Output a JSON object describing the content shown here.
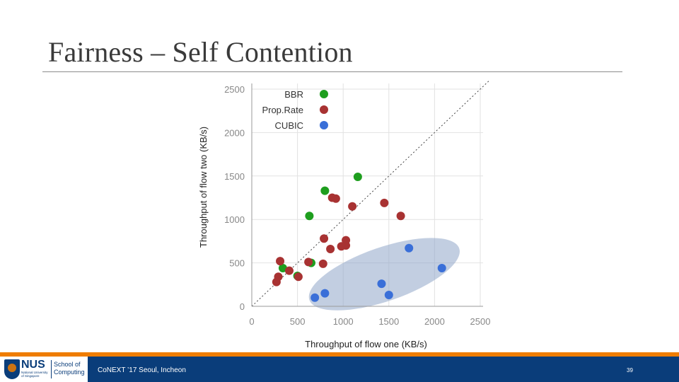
{
  "slide": {
    "title": "Fairness – Self Contention",
    "footer_text": "CoNEXT ’17 Seoul, Incheon",
    "page_number": "39",
    "logo": {
      "name": "NUS",
      "subtitle": "National University of Singapore",
      "school": "School of Computing"
    }
  },
  "chart_data": {
    "type": "scatter",
    "xlabel": "Throughput of flow one (KB/s)",
    "ylabel": "Throughput of flow two (KB/s)",
    "xlim": [
      0,
      2500
    ],
    "ylim": [
      0,
      2500
    ],
    "xticks": [
      0,
      500,
      1000,
      1500,
      2000,
      2500
    ],
    "yticks": [
      0,
      500,
      1000,
      1500,
      2000,
      2500
    ],
    "grid": true,
    "diagonal_reference_line": true,
    "legend_position": "top-left",
    "highlight_region": "ellipse around CUBIC points",
    "series": [
      {
        "name": "BBR",
        "color": "#1e9e1e",
        "points": [
          [
            1160,
            1490
          ],
          [
            800,
            1330
          ],
          [
            630,
            1040
          ],
          [
            340,
            440
          ],
          [
            650,
            500
          ],
          [
            500,
            350
          ]
        ]
      },
      {
        "name": "Prop.Rate",
        "color": "#a83232",
        "points": [
          [
            880,
            1250
          ],
          [
            920,
            1240
          ],
          [
            1100,
            1150
          ],
          [
            1450,
            1190
          ],
          [
            1630,
            1040
          ],
          [
            790,
            780
          ],
          [
            860,
            660
          ],
          [
            980,
            690
          ],
          [
            1030,
            700
          ],
          [
            1030,
            760
          ],
          [
            310,
            520
          ],
          [
            620,
            510
          ],
          [
            780,
            490
          ],
          [
            410,
            410
          ],
          [
            290,
            340
          ],
          [
            510,
            340
          ],
          [
            270,
            280
          ]
        ]
      },
      {
        "name": "CUBIC",
        "color": "#3a6fd8",
        "points": [
          [
            1720,
            670
          ],
          [
            2080,
            440
          ],
          [
            1420,
            260
          ],
          [
            1500,
            130
          ],
          [
            800,
            150
          ],
          [
            690,
            100
          ]
        ]
      }
    ]
  }
}
